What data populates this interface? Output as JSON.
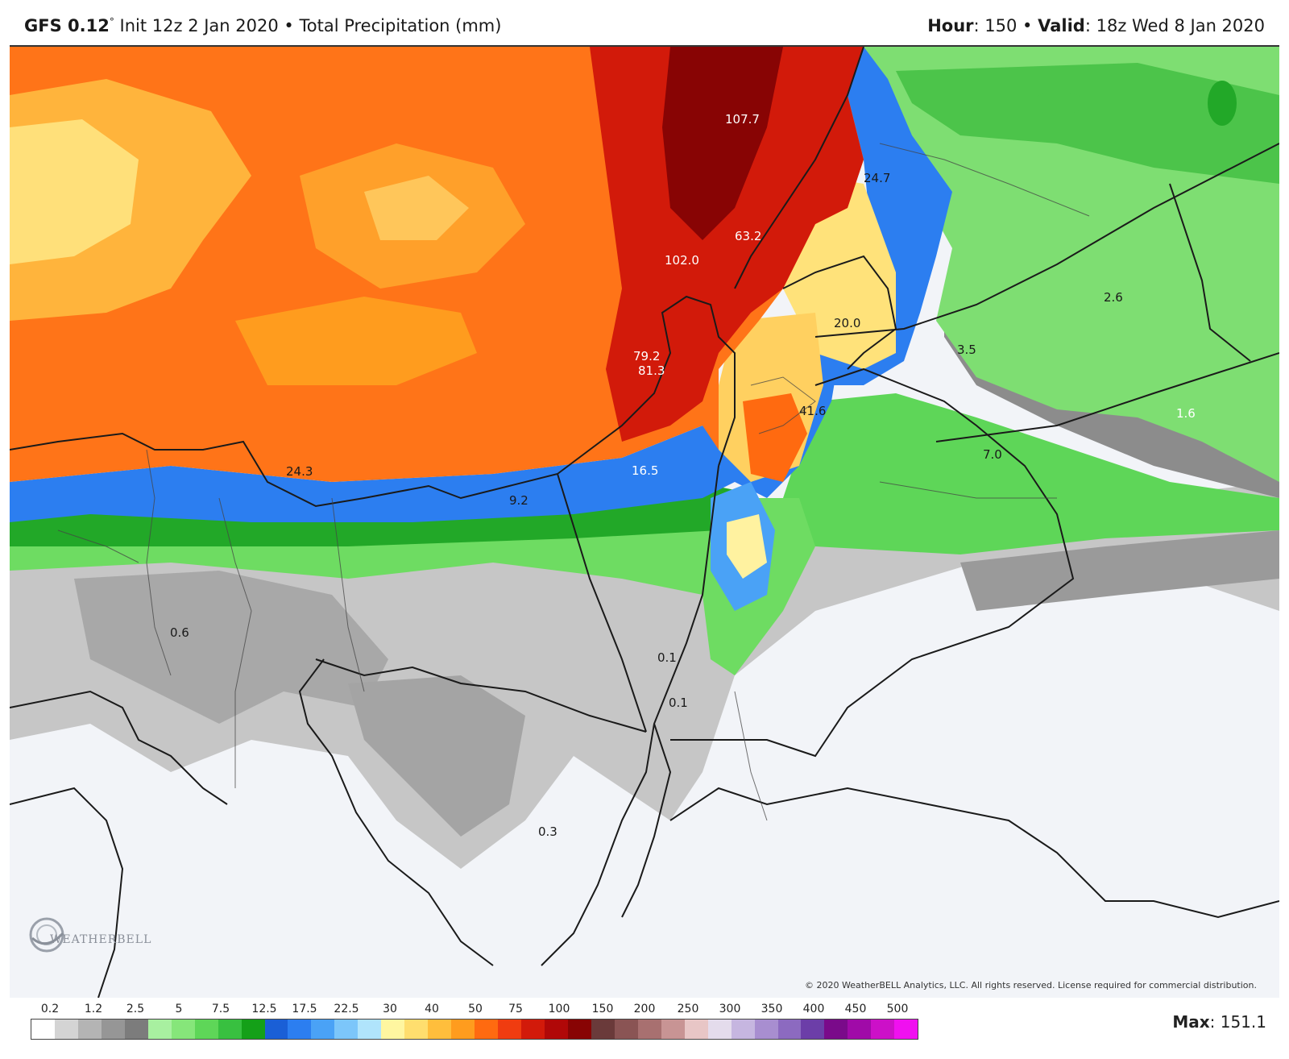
{
  "header": {
    "model": "GFS 0.12",
    "degree": "°",
    "init": "Init 12z 2 Jan 2020",
    "separator": "•",
    "product": "Total Precipitation (mm)",
    "hour_label": "Hour",
    "hour_value": ": 150",
    "valid_label": "Valid",
    "valid_value": ": 18z Wed 8 Jan 2020"
  },
  "map": {
    "value_labels": [
      {
        "text": "107.7",
        "color": "#ffffff"
      },
      {
        "text": "24.7",
        "color": "#1a1a1a"
      },
      {
        "text": "63.2",
        "color": "#ffffff"
      },
      {
        "text": "102.0",
        "color": "#ffffff"
      },
      {
        "text": "20.0",
        "color": "#1a1a1a"
      },
      {
        "text": "2.6",
        "color": "#1a1a1a"
      },
      {
        "text": "3.5",
        "color": "#1a1a1a"
      },
      {
        "text": "79.2",
        "color": "#ffffff"
      },
      {
        "text": "81.3",
        "color": "#ffffff"
      },
      {
        "text": "41.6",
        "color": "#1a1a1a"
      },
      {
        "text": "1.6",
        "color": "#ffffff"
      },
      {
        "text": "7.0",
        "color": "#1a1a1a"
      },
      {
        "text": "24.3",
        "color": "#1a1a1a"
      },
      {
        "text": "16.5",
        "color": "#ffffff"
      },
      {
        "text": "9.2",
        "color": "#1a1a1a"
      },
      {
        "text": "0.6",
        "color": "#1a1a1a"
      },
      {
        "text": "0.1",
        "color": "#1a1a1a"
      },
      {
        "text": "0.1",
        "color": "#1a1a1a"
      },
      {
        "text": "0.3",
        "color": "#1a1a1a"
      }
    ],
    "copyright": "© 2020 WeatherBELL Analytics, LLC. All rights reserved. License required for commercial distribution.",
    "logo_text": "WEATHERBELL"
  },
  "legend": {
    "ticks": [
      "0.2",
      "1.2",
      "2.5",
      "5",
      "7.5",
      "12.5",
      "17.5",
      "22.5",
      "30",
      "40",
      "50",
      "75",
      "100",
      "150",
      "200",
      "250",
      "300",
      "350",
      "400",
      "450",
      "500"
    ],
    "colors": [
      "#ffffff",
      "#d4d4d4",
      "#b4b4b4",
      "#969696",
      "#7c7c7c",
      "#a8f0a0",
      "#86e67a",
      "#5ed658",
      "#38c040",
      "#14a018",
      "#1a5fd6",
      "#2c7ef0",
      "#4aa2f6",
      "#7cc6fa",
      "#b0e4fc",
      "#fff6a0",
      "#ffde6e",
      "#ffbe3c",
      "#ff9c1e",
      "#ff6a10",
      "#f03c10",
      "#d21a0a",
      "#b00808",
      "#880404",
      "#6a3a3a",
      "#8a5454",
      "#a87070",
      "#c89494",
      "#e8c6c6",
      "#e4dcec",
      "#c6b6e0",
      "#a88ed0",
      "#8c6ac0",
      "#6c3ea8",
      "#7a0a8a",
      "#a00aa8",
      "#cc10c8",
      "#f010f0"
    ]
  },
  "max": {
    "label": "Max",
    "value": ": 151.1"
  }
}
